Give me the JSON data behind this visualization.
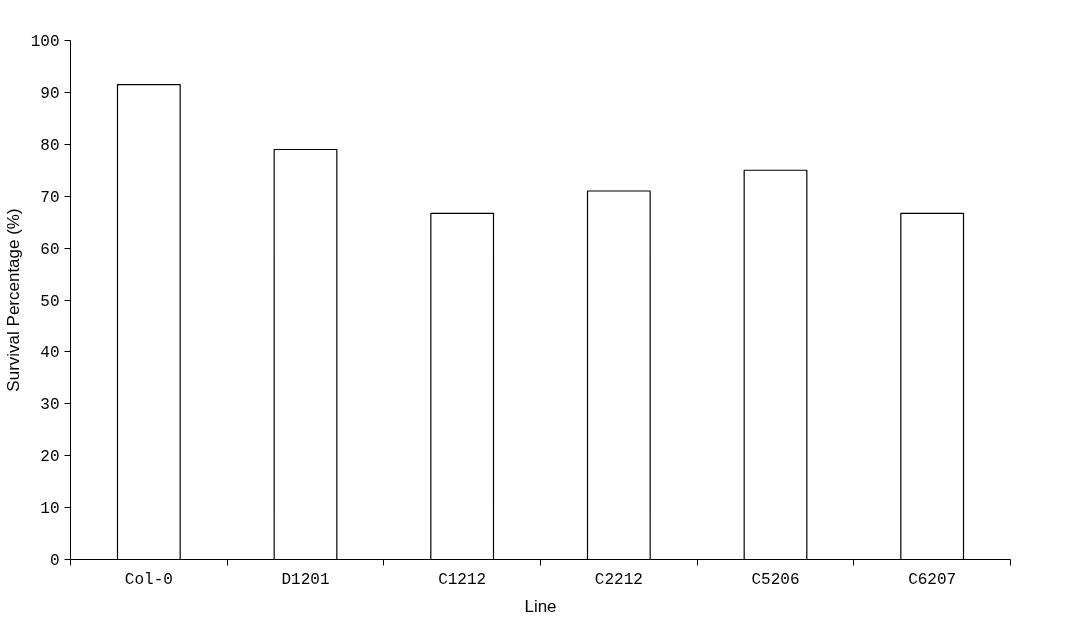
{
  "chart_data": {
    "type": "bar",
    "xlabel": "Line",
    "ylabel": "Survival Percentage (%)",
    "categories": [
      "Col-0",
      "D1201",
      "C1212",
      "C2212",
      "C5206",
      "C6207"
    ],
    "values": [
      91.5,
      79,
      66.7,
      71,
      75,
      66.7
    ],
    "color": "#ffffff",
    "ylim": [
      0,
      100
    ],
    "yticks": [
      0,
      10,
      20,
      30,
      40,
      50,
      60,
      70,
      80,
      90,
      100
    ],
    "grid": false
  }
}
